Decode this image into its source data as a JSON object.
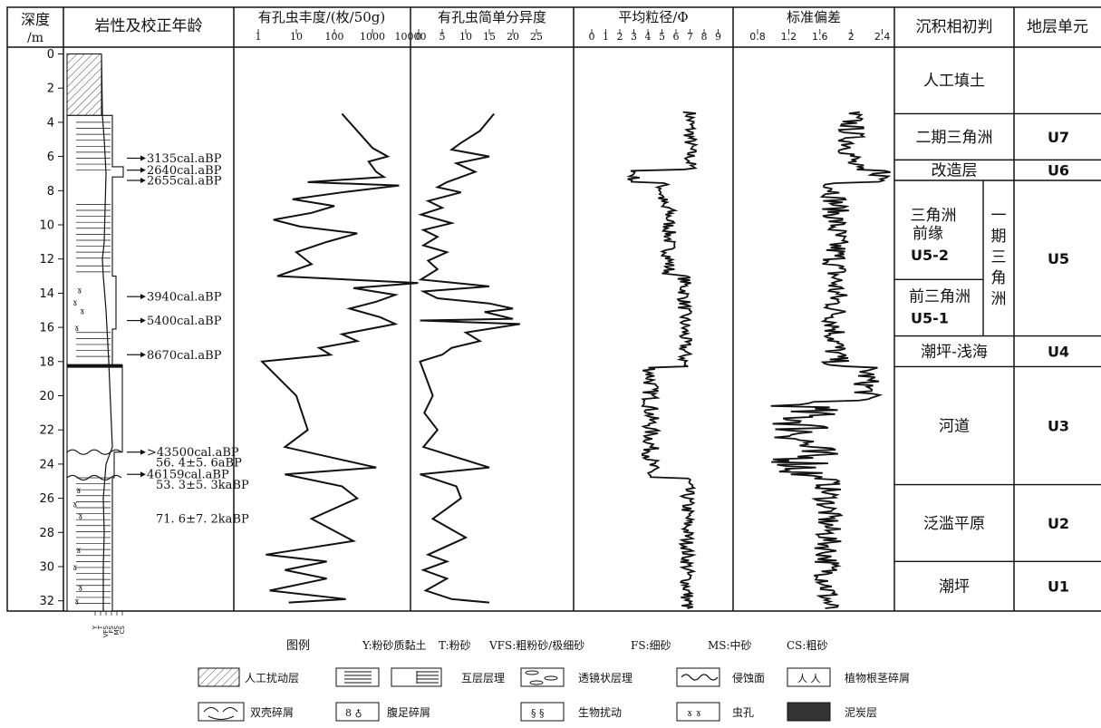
{
  "headers": {
    "depth": "深度 /m",
    "lith": "岩性及校正年龄",
    "abund": "有孔虫丰度/(枚/50g)",
    "div": "有孔虫简单分异度",
    "grain": "平均粒径/Φ",
    "sd": "标准偏差",
    "facies": "沉积相初判",
    "units": "地层单元"
  },
  "depth_ticks": [
    "0",
    "2",
    "4",
    "6",
    "8",
    "10",
    "12",
    "14",
    "16",
    "18",
    "20",
    "22",
    "24",
    "26",
    "28",
    "30",
    "32"
  ],
  "abund_ticks": [
    "1",
    "10",
    "100",
    "1000",
    "10000"
  ],
  "div_ticks": [
    "0",
    "5",
    "10",
    "15",
    "20",
    "25"
  ],
  "grain_ticks": [
    "0",
    "1",
    "2",
    "3",
    "4",
    "5",
    "6",
    "7",
    "8",
    "9"
  ],
  "sd_ticks": [
    "0.8",
    "1.2",
    "1.6",
    "2",
    "2.4"
  ],
  "grain_scale": [
    "Y",
    "T",
    "VFS",
    "FS",
    "MS",
    "CS"
  ],
  "ages": [
    {
      "label": "3135cal.aBP",
      "depth": 6.1
    },
    {
      "label": "2640cal.aBP",
      "depth": 6.8
    },
    {
      "label": "2655cal.aBP",
      "depth": 7.4
    },
    {
      "label": "3940cal.aBP",
      "depth": 14.2
    },
    {
      "label": "5400cal.aBP",
      "depth": 15.6
    },
    {
      "label": "8670cal.aBP",
      "depth": 17.6
    },
    {
      "label": ">43500cal.aBP",
      "depth": 23.3
    },
    {
      "label": "56. 4±5. 6aBP",
      "depth": 23.9
    },
    {
      "label": "46159cal.aBP",
      "depth": 24.6
    },
    {
      "label": "53. 3±5. 3kaBP",
      "depth": 25.2
    },
    {
      "label": "71. 6±7. 2kaBP",
      "depth": 27.2
    }
  ],
  "facies": [
    {
      "label": "人工填土",
      "unit": "",
      "top": 0,
      "bottom": 3.5
    },
    {
      "label": "二期三角洲",
      "unit": "U7",
      "top": 3.5,
      "bottom": 6.2
    },
    {
      "label": "改造层",
      "unit": "U6",
      "top": 6.2,
      "bottom": 7.4
    },
    {
      "label": "三角洲 前缘",
      "unit": "",
      "top": 7.4,
      "bottom": 13.2
    },
    {
      "label": "U5-2",
      "unit": "",
      "top": 7.4,
      "bottom": 13.2
    },
    {
      "label": "前三角洲",
      "unit": "",
      "top": 13.2,
      "bottom": 16.5
    },
    {
      "label": "U5-1",
      "unit": "",
      "top": 13.2,
      "bottom": 16.5
    },
    {
      "label": "一 期 三 角 洲",
      "unit": "U5",
      "top": 7.4,
      "bottom": 16.5
    },
    {
      "label": "潮坪-浅海",
      "unit": "U4",
      "top": 16.5,
      "bottom": 18.3
    },
    {
      "label": "河道",
      "unit": "U3",
      "top": 18.3,
      "bottom": 25.2
    },
    {
      "label": "泛滥平原",
      "unit": "U2",
      "top": 25.2,
      "bottom": 29.7
    },
    {
      "label": "潮坪",
      "unit": "U1",
      "top": 29.7,
      "bottom": 33.0
    }
  ],
  "legend": {
    "title": "图例",
    "grain_key": [
      "Y:粉砂质黏土",
      "T:粉砂",
      "VFS:粗粉砂/极细砂",
      "FS:细砂",
      "MS:中砂",
      "CS:粗砂"
    ],
    "items": [
      {
        "label": "人工扰动层"
      },
      {
        "label": "互层层理"
      },
      {
        "label": "透镜状层理"
      },
      {
        "label": "侵蚀面"
      },
      {
        "label": "植物根茎碎屑"
      },
      {
        "label": "双壳碎屑"
      },
      {
        "label": "腹足碎屑"
      },
      {
        "label": "生物扰动"
      },
      {
        "label": "虫孔"
      },
      {
        "label": "泥炭层"
      }
    ]
  },
  "series": {
    "abund_log10": [
      [
        3.5,
        2.2
      ],
      [
        4.5,
        2.6
      ],
      [
        5.5,
        3.0
      ],
      [
        6.0,
        3.4
      ],
      [
        6.3,
        2.9
      ],
      [
        6.9,
        3.1
      ],
      [
        7.2,
        3.3
      ],
      [
        7.5,
        1.3
      ],
      [
        7.7,
        3.7
      ],
      [
        8.1,
        2.2
      ],
      [
        8.5,
        0.9
      ],
      [
        8.9,
        2.0
      ],
      [
        9.3,
        1.4
      ],
      [
        9.7,
        0.4
      ],
      [
        10.1,
        1.1
      ],
      [
        10.5,
        2.6
      ],
      [
        11.0,
        1.8
      ],
      [
        11.6,
        1.0
      ],
      [
        12.3,
        1.4
      ],
      [
        13.0,
        0.5
      ],
      [
        13.4,
        4.2
      ],
      [
        13.7,
        2.5
      ],
      [
        14.1,
        3.6
      ],
      [
        14.5,
        3.1
      ],
      [
        14.9,
        2.4
      ],
      [
        15.4,
        3.2
      ],
      [
        15.8,
        3.6
      ],
      [
        16.4,
        2.2
      ],
      [
        16.8,
        2.6
      ],
      [
        17.2,
        1.6
      ],
      [
        17.6,
        1.9
      ],
      [
        18.0,
        0.1
      ],
      [
        20.0,
        1.0
      ],
      [
        22.0,
        1.3
      ],
      [
        23.0,
        0.7
      ],
      [
        24.2,
        3.1
      ],
      [
        24.6,
        0.7
      ],
      [
        25.3,
        2.2
      ],
      [
        26.0,
        2.6
      ],
      [
        27.2,
        1.4
      ],
      [
        28.5,
        2.5
      ],
      [
        29.3,
        0.2
      ],
      [
        29.7,
        1.8
      ],
      [
        30.2,
        0.7
      ],
      [
        30.7,
        1.8
      ],
      [
        31.4,
        0.3
      ],
      [
        31.9,
        2.3
      ],
      [
        32.1,
        0.8
      ]
    ],
    "diversity": [
      [
        3.5,
        16
      ],
      [
        4.5,
        13
      ],
      [
        5.2,
        9
      ],
      [
        5.6,
        7
      ],
      [
        6.0,
        15
      ],
      [
        6.4,
        8
      ],
      [
        6.9,
        12
      ],
      [
        7.5,
        6
      ],
      [
        7.8,
        4
      ],
      [
        8.1,
        9
      ],
      [
        8.6,
        2
      ],
      [
        9.0,
        5
      ],
      [
        9.4,
        0.5
      ],
      [
        9.9,
        7
      ],
      [
        10.3,
        1
      ],
      [
        10.7,
        4
      ],
      [
        11.2,
        1
      ],
      [
        11.6,
        6
      ],
      [
        12.1,
        2
      ],
      [
        12.6,
        4
      ],
      [
        13.2,
        0.5
      ],
      [
        13.6,
        15
      ],
      [
        13.9,
        1
      ],
      [
        14.3,
        4
      ],
      [
        14.6,
        15
      ],
      [
        14.9,
        20
      ],
      [
        15.1,
        14
      ],
      [
        15.5,
        20
      ],
      [
        15.6,
        0.3
      ],
      [
        15.8,
        21.5
      ],
      [
        16.3,
        10
      ],
      [
        16.8,
        13
      ],
      [
        17.2,
        7
      ],
      [
        17.6,
        5
      ],
      [
        18.0,
        0.3
      ],
      [
        20.0,
        3
      ],
      [
        21.0,
        1.2
      ],
      [
        22.0,
        4
      ],
      [
        23.0,
        1.0
      ],
      [
        24.2,
        15
      ],
      [
        24.6,
        0.3
      ],
      [
        25.3,
        8
      ],
      [
        26.0,
        9
      ],
      [
        27.2,
        3
      ],
      [
        28.3,
        10
      ],
      [
        29.3,
        2
      ],
      [
        29.7,
        6
      ],
      [
        30.2,
        1
      ],
      [
        30.7,
        6
      ],
      [
        31.4,
        1.5
      ],
      [
        31.9,
        7
      ],
      [
        32.1,
        15
      ]
    ]
  }
}
